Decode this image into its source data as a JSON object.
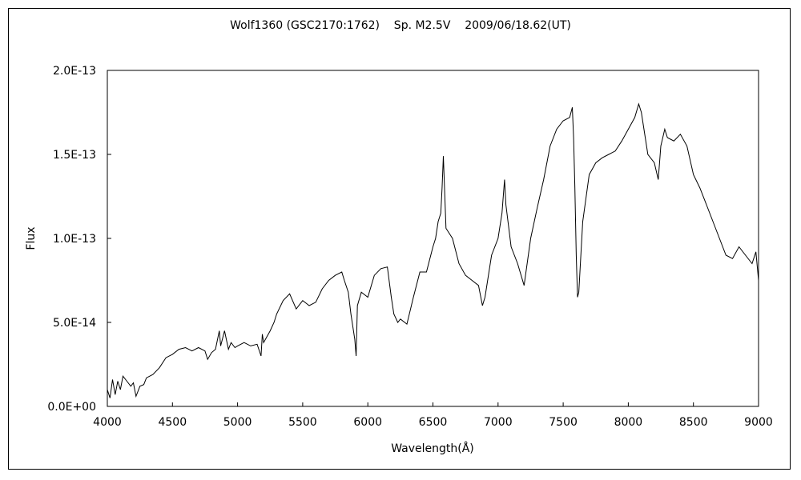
{
  "chart_data": {
    "type": "line",
    "title": "Wolf1360 (GSC2170:1762)    Sp. M2.5V    2009/06/18.62(UT)",
    "xlabel": "Wavelength(Å)",
    "ylabel": "Flux",
    "xlim": [
      4000,
      9000
    ],
    "ylim": [
      0,
      2e-13
    ],
    "xticks": [
      4000,
      4500,
      5000,
      5500,
      6000,
      6500,
      7000,
      7500,
      8000,
      8500,
      9000
    ],
    "xtick_labels": [
      "4000",
      "4500",
      "5000",
      "5500",
      "6000",
      "6500",
      "7000",
      "7500",
      "8000",
      "8500",
      "9000"
    ],
    "yticks": [
      0,
      5e-14,
      1e-13,
      1.5e-13,
      2e-13
    ],
    "ytick_labels": [
      "0.0E+00",
      "5.0E-14",
      "1.0E-13",
      "1.5E-13",
      "2.0E-13"
    ],
    "grid": false,
    "legend": "none",
    "line_color": "#000000",
    "series": [
      {
        "x": [
          4000,
          4020,
          4040,
          4060,
          4080,
          4100,
          4120,
          4150,
          4180,
          4200,
          4220,
          4250,
          4280,
          4300,
          4350,
          4400,
          4450,
          4500,
          4550,
          4600,
          4650,
          4700,
          4750,
          4770,
          4800,
          4830,
          4860,
          4870,
          4900,
          4930,
          4950,
          4980,
          5000,
          5050,
          5100,
          5150,
          5180,
          5190,
          5200,
          5250,
          5280,
          5300,
          5350,
          5400,
          5450,
          5500,
          5550,
          5600,
          5650,
          5700,
          5750,
          5800,
          5820,
          5850,
          5870,
          5900,
          5910,
          5920,
          5950,
          6000,
          6050,
          6100,
          6150,
          6180,
          6200,
          6230,
          6250,
          6300,
          6350,
          6400,
          6450,
          6500,
          6520,
          6540,
          6560,
          6570,
          6580,
          6600,
          6650,
          6700,
          6750,
          6800,
          6850,
          6880,
          6900,
          6950,
          7000,
          7030,
          7050,
          7060,
          7100,
          7150,
          7200,
          7250,
          7300,
          7350,
          7400,
          7450,
          7500,
          7550,
          7570,
          7580,
          7590,
          7600,
          7610,
          7620,
          7650,
          7700,
          7750,
          7800,
          7850,
          7900,
          7950,
          8000,
          8050,
          8080,
          8100,
          8150,
          8200,
          8230,
          8250,
          8280,
          8300,
          8350,
          8400,
          8450,
          8500,
          8550,
          8600,
          8650,
          8700,
          8750,
          8800,
          8850,
          8900,
          8950,
          8980,
          9000
        ],
        "y": [
          1e-14,
          5e-15,
          1.6e-14,
          7e-15,
          1.5e-14,
          1e-14,
          1.8e-14,
          1.5e-14,
          1.2e-14,
          1.4e-14,
          6e-15,
          1.2e-14,
          1.3e-14,
          1.7e-14,
          1.9e-14,
          2.3e-14,
          2.9e-14,
          3.1e-14,
          3.4e-14,
          3.5e-14,
          3.3e-14,
          3.5e-14,
          3.3e-14,
          2.8e-14,
          3.2e-14,
          3.4e-14,
          4.5e-14,
          3.6e-14,
          4.5e-14,
          3.4e-14,
          3.8e-14,
          3.5e-14,
          3.6e-14,
          3.8e-14,
          3.6e-14,
          3.7e-14,
          3e-14,
          4.3e-14,
          3.8e-14,
          4.5e-14,
          5e-14,
          5.5e-14,
          6.3e-14,
          6.7e-14,
          5.8e-14,
          6.3e-14,
          6e-14,
          6.2e-14,
          7e-14,
          7.5e-14,
          7.8e-14,
          8e-14,
          7.5e-14,
          6.8e-14,
          5.5e-14,
          4e-14,
          3e-14,
          6e-14,
          6.8e-14,
          6.5e-14,
          7.8e-14,
          8.2e-14,
          8.3e-14,
          6.5e-14,
          5.5e-14,
          5e-14,
          5.2e-14,
          4.9e-14,
          6.5e-14,
          8e-14,
          8e-14,
          9.5e-14,
          1e-13,
          1.1e-13,
          1.15e-13,
          1.3e-13,
          1.49e-13,
          1.06e-13,
          1e-13,
          8.5e-14,
          7.8e-14,
          7.5e-14,
          7.2e-14,
          6e-14,
          6.5e-14,
          9e-14,
          1e-13,
          1.15e-13,
          1.35e-13,
          1.2e-13,
          9.5e-14,
          8.5e-14,
          7.2e-14,
          1e-13,
          1.18e-13,
          1.35e-13,
          1.55e-13,
          1.65e-13,
          1.7e-13,
          1.72e-13,
          1.78e-13,
          1.6e-13,
          1.3e-13,
          9e-14,
          6.5e-14,
          6.8e-14,
          1.1e-13,
          1.38e-13,
          1.45e-13,
          1.48e-13,
          1.5e-13,
          1.52e-13,
          1.58e-13,
          1.65e-13,
          1.72e-13,
          1.8e-13,
          1.75e-13,
          1.5e-13,
          1.45e-13,
          1.35e-13,
          1.55e-13,
          1.65e-13,
          1.6e-13,
          1.58e-13,
          1.62e-13,
          1.55e-13,
          1.38e-13,
          1.3e-13,
          1.2e-13,
          1.1e-13,
          1e-13,
          9e-14,
          8.8e-14,
          9.5e-14,
          9e-14,
          8.5e-14,
          9.2e-14,
          7.5e-14
        ]
      }
    ]
  }
}
